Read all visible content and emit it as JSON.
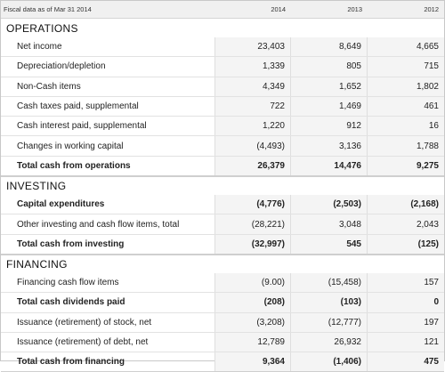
{
  "header": {
    "label": "Fiscal data as of Mar 31 2014",
    "years": [
      "2014",
      "2013",
      "2012"
    ]
  },
  "sections": [
    {
      "title": "OPERATIONS",
      "rows": [
        {
          "label": "Net income",
          "values": [
            "23,403",
            "8,649",
            "4,665"
          ],
          "bold": false
        },
        {
          "label": "Depreciation/depletion",
          "values": [
            "1,339",
            "805",
            "715"
          ],
          "bold": false
        },
        {
          "label": "Non-Cash items",
          "values": [
            "4,349",
            "1,652",
            "1,802"
          ],
          "bold": false
        },
        {
          "label": "Cash taxes paid, supplemental",
          "values": [
            "722",
            "1,469",
            "461"
          ],
          "bold": false
        },
        {
          "label": "Cash interest paid, supplemental",
          "values": [
            "1,220",
            "912",
            "16"
          ],
          "bold": false
        },
        {
          "label": "Changes in working capital",
          "values": [
            "(4,493)",
            "3,136",
            "1,788"
          ],
          "bold": false
        },
        {
          "label": "Total cash from operations",
          "values": [
            "26,379",
            "14,476",
            "9,275"
          ],
          "bold": true
        }
      ]
    },
    {
      "title": "INVESTING",
      "rows": [
        {
          "label": "Capital expenditures",
          "values": [
            "(4,776)",
            "(2,503)",
            "(2,168)"
          ],
          "bold": true
        },
        {
          "label": "Other investing and cash flow items, total",
          "values": [
            "(28,221)",
            "3,048",
            "2,043"
          ],
          "bold": false
        },
        {
          "label": "Total cash from investing",
          "values": [
            "(32,997)",
            "545",
            "(125)"
          ],
          "bold": true
        }
      ]
    },
    {
      "title": "FINANCING",
      "rows": [
        {
          "label": "Financing cash flow items",
          "values": [
            "(9.00)",
            "(15,458)",
            "157"
          ],
          "bold": false
        },
        {
          "label": "Total cash dividends paid",
          "values": [
            "(208)",
            "(103)",
            "0"
          ],
          "bold": true
        },
        {
          "label": "Issuance (retirement) of stock, net",
          "values": [
            "(3,208)",
            "(12,777)",
            "197"
          ],
          "bold": false
        },
        {
          "label": "Issuance (retirement) of debt, net",
          "values": [
            "12,789",
            "26,932",
            "121"
          ],
          "bold": false
        },
        {
          "label": "Total cash from financing",
          "values": [
            "9,364",
            "(1,406)",
            "475"
          ],
          "bold": true
        }
      ]
    }
  ]
}
